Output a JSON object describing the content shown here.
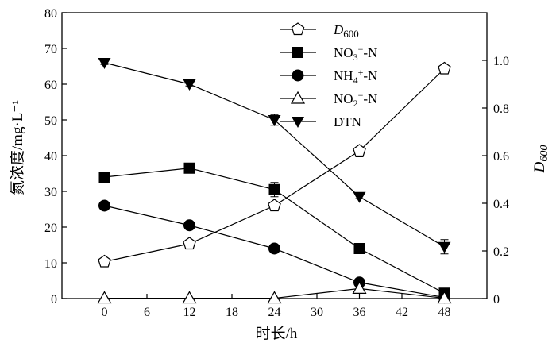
{
  "chart_data": {
    "type": "line",
    "x": [
      0,
      12,
      24,
      36,
      48
    ],
    "xlabel": "时长/h",
    "ylabel_left": "氮浓度/mg·L⁻¹",
    "ylabel_right": "D600",
    "xlim": [
      -6,
      54
    ],
    "ylim_left": [
      0,
      80
    ],
    "ylim_right": [
      0,
      1.2
    ],
    "x_ticks": [
      "0",
      "6",
      "12",
      "18",
      "24",
      "30",
      "36",
      "42",
      "48"
    ],
    "y_left_ticks": [
      "0",
      "10",
      "20",
      "30",
      "40",
      "50",
      "60",
      "70",
      "80"
    ],
    "y_right_ticks": [
      "0",
      "0.2",
      "0.4",
      "0.6",
      "0.8",
      "1.0"
    ],
    "grid": false,
    "legend_position": "top-right",
    "series": [
      {
        "name": "D600",
        "axis": "right",
        "marker": "pentagon-open",
        "values": [
          0.155,
          0.23,
          0.39,
          0.62,
          0.965
        ],
        "error": [
          0.01,
          0.01,
          0.015,
          0.025,
          0.01
        ]
      },
      {
        "name": "NO3−-N",
        "axis": "left",
        "marker": "square-filled",
        "values": [
          34,
          36.5,
          30.5,
          14,
          1.5
        ],
        "error": [
          0.5,
          0.5,
          2,
          0.5,
          0.5
        ]
      },
      {
        "name": "NH4+-N",
        "axis": "left",
        "marker": "circle-filled",
        "values": [
          26,
          20.5,
          14,
          4.5,
          0.3
        ],
        "error": [
          0.5,
          0.5,
          0.5,
          0.5,
          0.5
        ]
      },
      {
        "name": "NO2−-N",
        "axis": "left",
        "marker": "triangle-up-open",
        "values": [
          0.1,
          0.1,
          0.1,
          2.8,
          0.1
        ],
        "error": [
          0,
          0,
          0,
          0.5,
          0
        ]
      },
      {
        "name": "DTN",
        "axis": "left",
        "marker": "triangle-down-filled",
        "values": [
          66,
          60,
          50,
          28.5,
          14.5
        ],
        "error": [
          0.5,
          0.5,
          1.5,
          0.5,
          2
        ]
      }
    ]
  }
}
